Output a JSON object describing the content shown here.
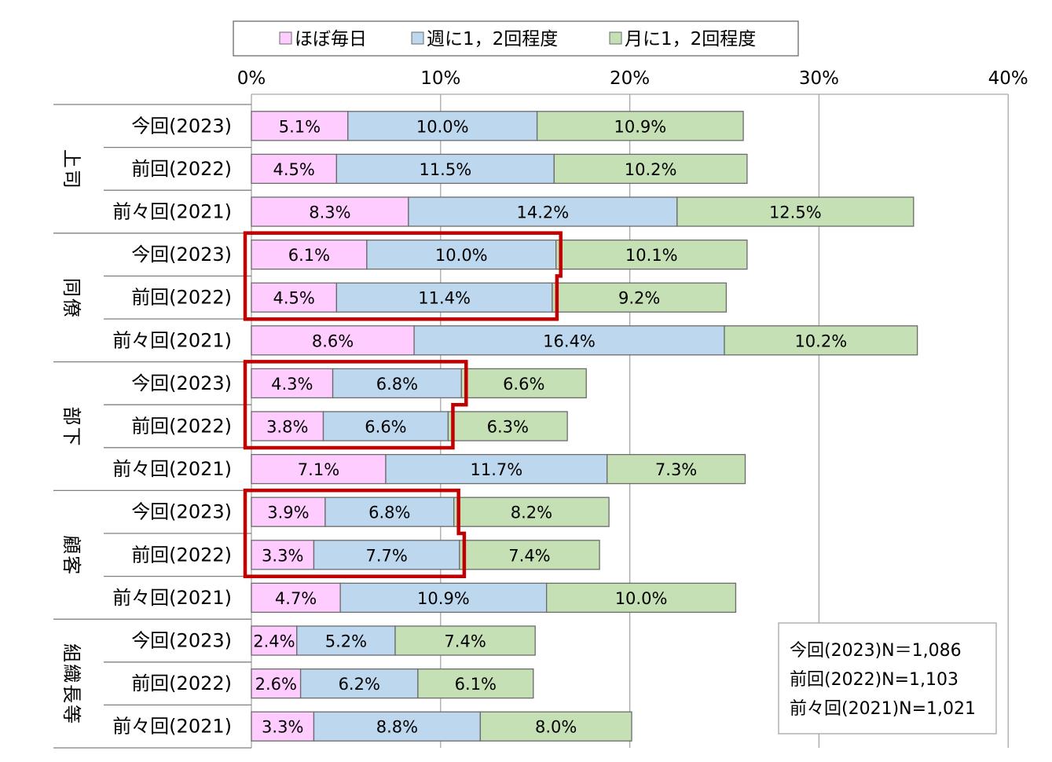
{
  "chart_data": {
    "type": "bar",
    "orientation": "horizontal",
    "stacked": true,
    "xlim": [
      0,
      40
    ],
    "x_ticks": [
      "0%",
      "10%",
      "20%",
      "30%",
      "40%"
    ],
    "grid": true,
    "legend_position": "top",
    "series": [
      {
        "name": "ほぼ毎日",
        "color": "#ffccff"
      },
      {
        "name": "週に1，2回程度",
        "color": "#bdd7ee"
      },
      {
        "name": "月に1，2回程度",
        "color": "#c5e0b4"
      }
    ],
    "groups": [
      {
        "label": "上司",
        "rows": [
          {
            "label": "今回(2023)",
            "values": [
              5.1,
              10.0,
              10.9
            ],
            "labels": [
              "5.1%",
              "10.0%",
              "10.9%"
            ]
          },
          {
            "label": "前回(2022)",
            "values": [
              4.5,
              11.5,
              10.2
            ],
            "labels": [
              "4.5%",
              "11.5%",
              "10.2%"
            ]
          },
          {
            "label": "前々回(2021)",
            "values": [
              8.3,
              14.2,
              12.5
            ],
            "labels": [
              "8.3%",
              "14.2%",
              "12.5%"
            ]
          }
        ]
      },
      {
        "label": "同僚",
        "highlight": true,
        "rows": [
          {
            "label": "今回(2023)",
            "values": [
              6.1,
              10.0,
              10.1
            ],
            "labels": [
              "6.1%",
              "10.0%",
              "10.1%"
            ]
          },
          {
            "label": "前回(2022)",
            "values": [
              4.5,
              11.4,
              9.2
            ],
            "labels": [
              "4.5%",
              "11.4%",
              "9.2%"
            ]
          },
          {
            "label": "前々回(2021)",
            "values": [
              8.6,
              16.4,
              10.2
            ],
            "labels": [
              "8.6%",
              "16.4%",
              "10.2%"
            ]
          }
        ]
      },
      {
        "label": "部下",
        "highlight": true,
        "rows": [
          {
            "label": "今回(2023)",
            "values": [
              4.3,
              6.8,
              6.6
            ],
            "labels": [
              "4.3%",
              "6.8%",
              "6.6%"
            ]
          },
          {
            "label": "前回(2022)",
            "values": [
              3.8,
              6.6,
              6.3
            ],
            "labels": [
              "3.8%",
              "6.6%",
              "6.3%"
            ]
          },
          {
            "label": "前々回(2021)",
            "values": [
              7.1,
              11.7,
              7.3
            ],
            "labels": [
              "7.1%",
              "11.7%",
              "7.3%"
            ]
          }
        ]
      },
      {
        "label": "顧客",
        "highlight": true,
        "rows": [
          {
            "label": "今回(2023)",
            "values": [
              3.9,
              6.8,
              8.2
            ],
            "labels": [
              "3.9%",
              "6.8%",
              "8.2%"
            ]
          },
          {
            "label": "前回(2022)",
            "values": [
              3.3,
              7.7,
              7.4
            ],
            "labels": [
              "3.3%",
              "7.7%",
              "7.4%"
            ]
          },
          {
            "label": "前々回(2021)",
            "values": [
              4.7,
              10.9,
              10.0
            ],
            "labels": [
              "4.7%",
              "10.9%",
              "10.0%"
            ]
          }
        ]
      },
      {
        "label": "組織長等",
        "rows": [
          {
            "label": "今回(2023)",
            "values": [
              2.4,
              5.2,
              7.4
            ],
            "labels": [
              "2.4%",
              "5.2%",
              "7.4%"
            ]
          },
          {
            "label": "前回(2022)",
            "values": [
              2.6,
              6.2,
              6.1
            ],
            "labels": [
              "2.6%",
              "6.2%",
              "6.1%"
            ]
          },
          {
            "label": "前々回(2021)",
            "values": [
              3.3,
              8.8,
              8.0
            ],
            "labels": [
              "3.3%",
              "8.8%",
              "8.0%"
            ]
          }
        ]
      }
    ],
    "highlight_color": "#c00000",
    "note_lines": [
      "今回(2023)N＝1,086",
      "前回(2022)N=1,103",
      "前々回(2021)N=1,021"
    ]
  }
}
